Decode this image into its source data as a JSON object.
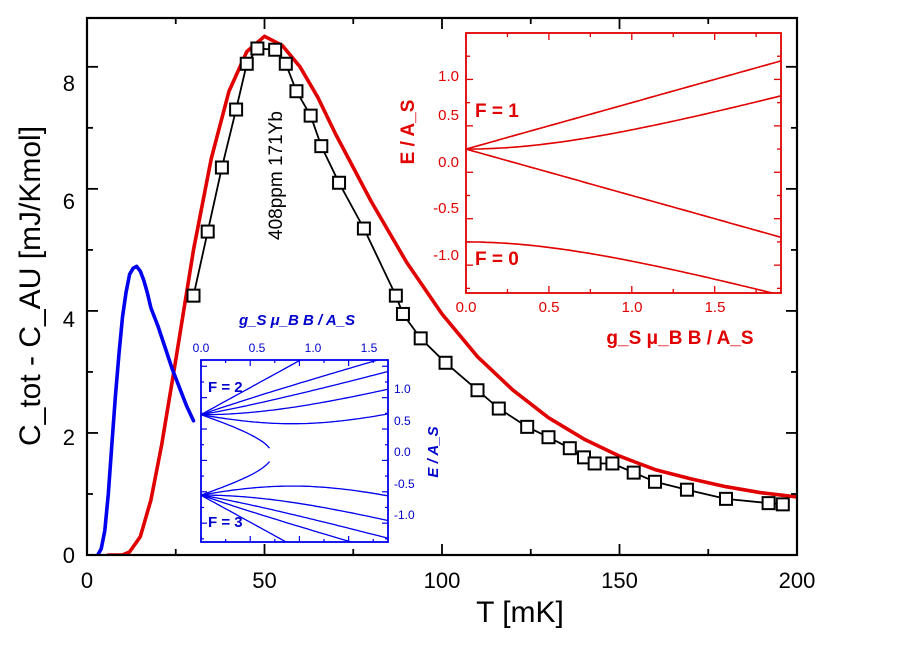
{
  "chart_data": [
    {
      "type": "line",
      "xlabel": "T [mK]",
      "ylabel": "C_tot - C_AU [mJ/Kmol]",
      "xlim": [
        0,
        200
      ],
      "ylim": [
        0,
        8.8
      ],
      "xticks": [
        "0",
        "50",
        "100",
        "150",
        "200"
      ],
      "yticks": [
        "0",
        "2",
        "4",
        "6",
        "8"
      ],
      "annotation": "408ppm 171Yb",
      "series": [
        {
          "color": "#000000",
          "marker": "open-square",
          "x": [
            30,
            34,
            38,
            42,
            45,
            48,
            53,
            56,
            59,
            63,
            66,
            71,
            78,
            87,
            89,
            94,
            101,
            110,
            116,
            124,
            130,
            136,
            140,
            143,
            148,
            154,
            160,
            169,
            180,
            192,
            196
          ],
          "y": [
            4.25,
            5.3,
            6.35,
            7.3,
            8.05,
            8.3,
            8.28,
            8.05,
            7.6,
            7.2,
            6.7,
            6.1,
            5.35,
            4.25,
            3.95,
            3.55,
            3.15,
            2.7,
            2.4,
            2.1,
            1.93,
            1.75,
            1.6,
            1.5,
            1.5,
            1.35,
            1.2,
            1.07,
            0.92,
            0.85,
            0.83
          ]
        },
        {
          "color": "#e00000",
          "x": [
            6,
            10,
            12,
            15,
            18,
            21,
            25,
            30,
            35,
            40,
            45,
            50,
            55,
            60,
            65,
            70,
            80,
            90,
            100,
            110,
            120,
            130,
            140,
            150,
            160,
            170,
            180,
            190,
            200
          ],
          "y": [
            0,
            0,
            0.05,
            0.3,
            0.9,
            1.8,
            3.2,
            5.0,
            6.5,
            7.6,
            8.25,
            8.5,
            8.35,
            8.0,
            7.5,
            6.9,
            5.8,
            4.8,
            3.95,
            3.25,
            2.7,
            2.25,
            1.9,
            1.62,
            1.4,
            1.25,
            1.12,
            1.02,
            0.95
          ]
        },
        {
          "color": "#0000ee",
          "x": [
            3,
            4,
            5,
            6,
            7,
            8,
            9,
            10,
            11,
            12,
            13,
            14,
            15,
            16,
            17,
            18,
            20,
            22,
            24,
            26,
            28,
            30
          ],
          "y": [
            0,
            0.1,
            0.4,
            1.0,
            1.8,
            2.6,
            3.3,
            3.9,
            4.3,
            4.6,
            4.7,
            4.73,
            4.65,
            4.5,
            4.3,
            4.05,
            3.75,
            3.4,
            3.05,
            2.75,
            2.45,
            2.2
          ]
        }
      ]
    },
    {
      "type": "line",
      "xlabel": "g_S μ_B B / A_S",
      "ylabel": "E / A_S",
      "xlim": [
        0,
        1.9
      ],
      "ylim": [
        -1.3,
        1.5
      ],
      "xticks": [
        "0.0",
        "0.5",
        "1.0",
        "1.5"
      ],
      "yticks": [
        "-1.0",
        "-0.5",
        "0.0",
        "0.5",
        "1.0"
      ],
      "annotations": [
        "F = 1",
        "F = 0"
      ],
      "color": "#e00000",
      "line_count": 4
    },
    {
      "type": "line",
      "xlabel": "g_S μ_B B / A_S",
      "ylabel": "E / A_S",
      "xlim": [
        0,
        1.9
      ],
      "ylim": [
        -1.3,
        1.6
      ],
      "xticks": [
        "0.0",
        "0.5",
        "1.0",
        "1.5"
      ],
      "yticks": [
        "-1.0",
        "-0.5",
        "0.0",
        "0.5",
        "1.0"
      ],
      "annotations": [
        "F = 2",
        "F = 3"
      ],
      "color": "#0000ee",
      "line_count": 12
    }
  ]
}
